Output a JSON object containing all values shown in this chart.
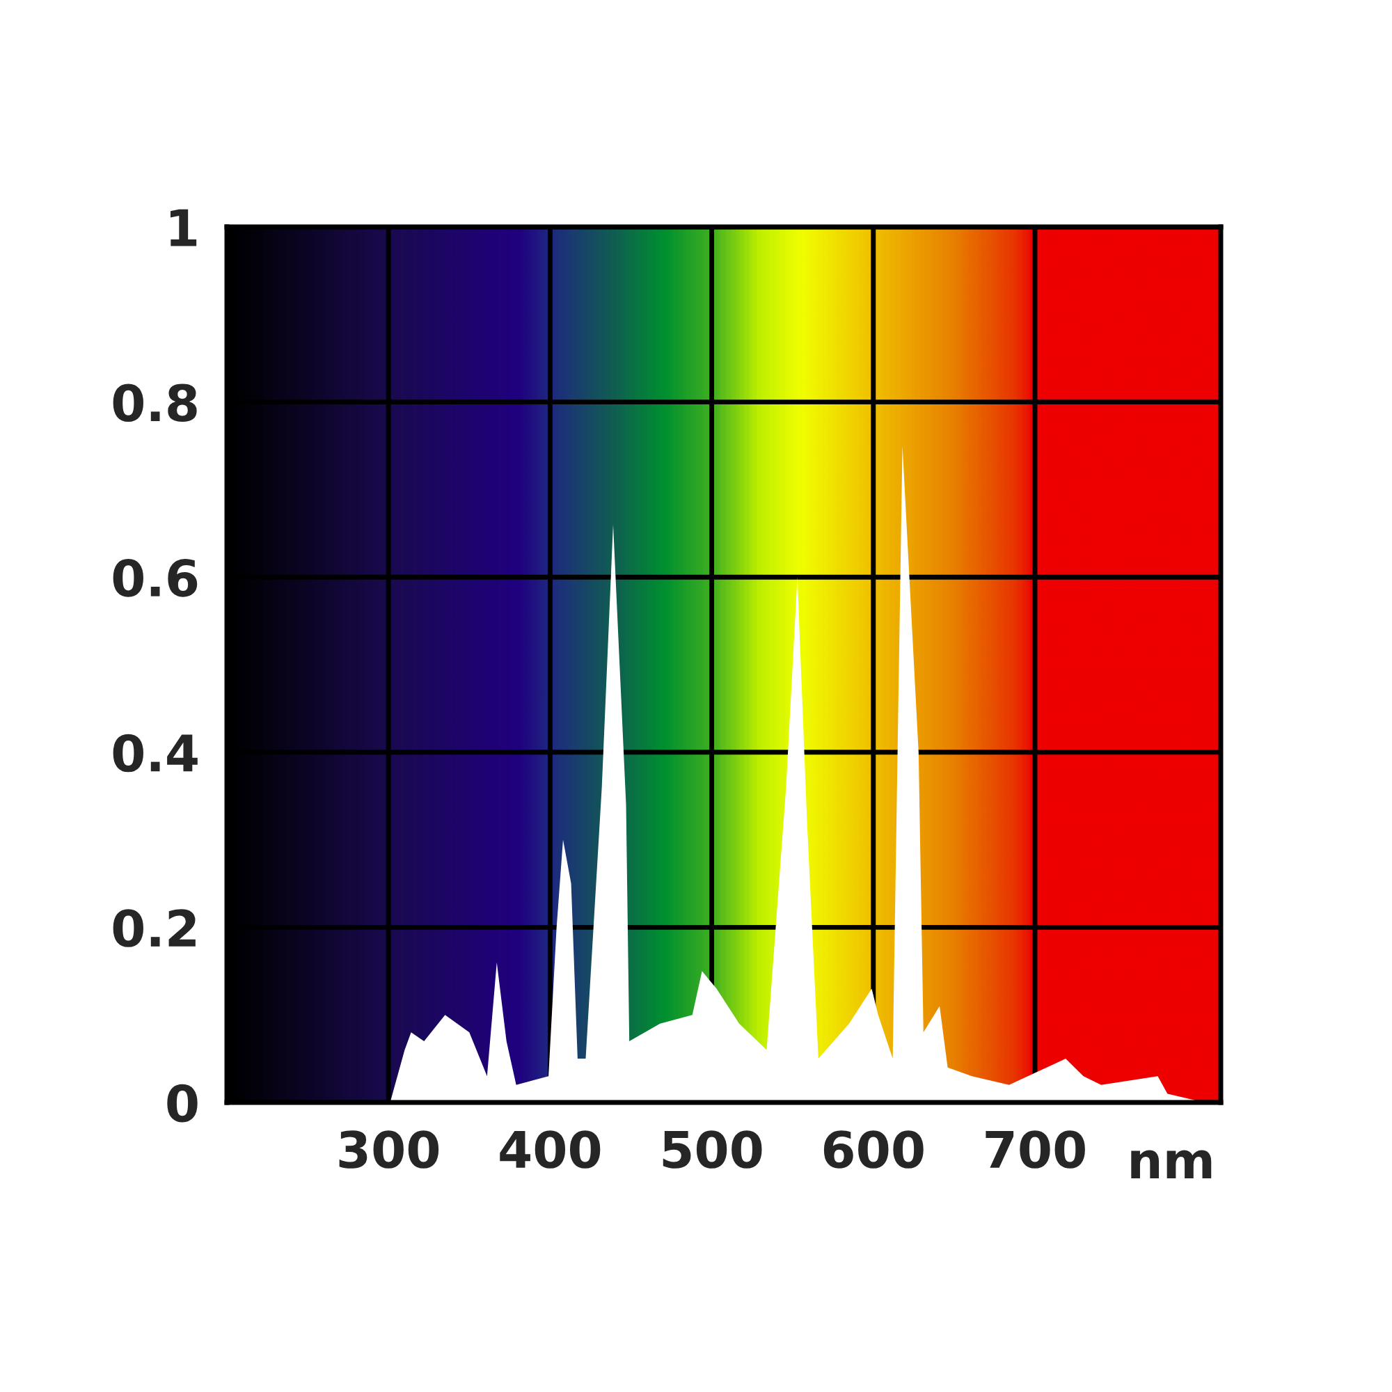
{
  "chart_data": {
    "type": "area",
    "xlabel": "nm",
    "x": [
      301,
      310,
      314,
      322,
      335,
      350,
      361,
      367,
      373,
      379,
      399,
      404,
      408,
      413,
      417,
      422,
      432,
      439,
      447,
      449,
      468,
      488,
      494,
      503,
      517,
      534,
      546,
      553,
      559,
      566,
      585,
      599,
      603,
      612,
      618,
      628,
      631,
      641,
      646,
      661,
      684,
      719,
      730,
      741,
      776,
      782,
      805
    ],
    "series": [
      {
        "color": "#ffffff",
        "values": [
          0.0,
          0.06,
          0.08,
          0.07,
          0.1,
          0.08,
          0.03,
          0.16,
          0.07,
          0.02,
          0.03,
          0.2,
          0.3,
          0.25,
          0.05,
          0.05,
          0.36,
          0.66,
          0.34,
          0.07,
          0.09,
          0.1,
          0.15,
          0.13,
          0.09,
          0.06,
          0.36,
          0.6,
          0.32,
          0.05,
          0.09,
          0.13,
          0.1,
          0.05,
          0.75,
          0.4,
          0.08,
          0.11,
          0.04,
          0.03,
          0.02,
          0.05,
          0.03,
          0.02,
          0.03,
          0.01,
          0.0
        ]
      }
    ],
    "xlim": [
      200,
      815
    ],
    "ylim": [
      0,
      1
    ],
    "xticks": [
      300,
      400,
      500,
      600,
      700
    ],
    "yticks": [
      0,
      0.2,
      0.4,
      0.6,
      0.8,
      1
    ],
    "grid": true,
    "legend": false
  }
}
